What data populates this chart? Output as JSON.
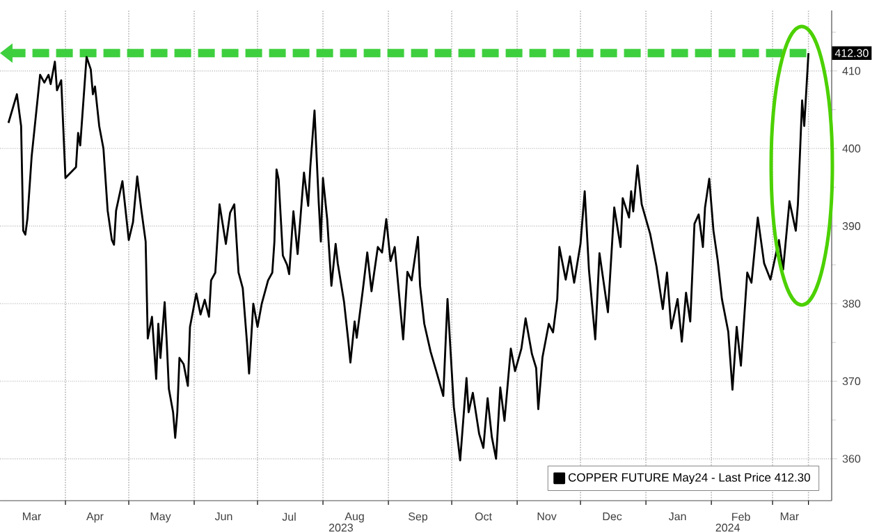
{
  "chart_data": {
    "type": "line",
    "x": [
      "2023-03-05",
      "2023-03-09",
      "2023-03-11",
      "2023-03-12",
      "2023-03-13",
      "2023-03-14",
      "2023-03-16",
      "2023-03-20",
      "2023-03-22",
      "2023-03-24",
      "2023-03-25",
      "2023-03-27",
      "2023-03-28",
      "2023-03-30",
      "2023-04-01",
      "2023-04-06",
      "2023-04-07",
      "2023-04-08",
      "2023-04-11",
      "2023-04-13",
      "2023-04-14",
      "2023-04-15",
      "2023-04-17",
      "2023-04-19",
      "2023-04-21",
      "2023-04-23",
      "2023-04-24",
      "2023-04-25",
      "2023-04-28",
      "2023-05-01",
      "2023-05-03",
      "2023-05-05",
      "2023-05-07",
      "2023-05-09",
      "2023-05-10",
      "2023-05-12",
      "2023-05-14",
      "2023-05-15",
      "2023-05-16",
      "2023-05-18",
      "2023-05-19",
      "2023-05-20",
      "2023-05-22",
      "2023-05-23",
      "2023-05-24",
      "2023-05-25",
      "2023-05-27",
      "2023-05-29",
      "2023-05-30",
      "2023-06-02",
      "2023-06-04",
      "2023-06-06",
      "2023-06-08",
      "2023-06-09",
      "2023-06-11",
      "2023-06-13",
      "2023-06-16",
      "2023-06-18",
      "2023-06-20",
      "2023-06-22",
      "2023-06-24",
      "2023-06-26",
      "2023-06-27",
      "2023-06-29",
      "2023-07-01",
      "2023-07-03",
      "2023-07-06",
      "2023-07-08",
      "2023-07-09",
      "2023-07-10",
      "2023-07-11",
      "2023-07-13",
      "2023-07-15",
      "2023-07-16",
      "2023-07-18",
      "2023-07-20",
      "2023-07-23",
      "2023-07-25",
      "2023-07-26",
      "2023-07-28",
      "2023-07-30",
      "2023-07-31",
      "2023-08-01",
      "2023-08-03",
      "2023-08-05",
      "2023-08-07",
      "2023-08-08",
      "2023-08-11",
      "2023-08-13",
      "2023-08-14",
      "2023-08-16",
      "2023-08-17",
      "2023-08-20",
      "2023-08-22",
      "2023-08-24",
      "2023-08-27",
      "2023-08-29",
      "2023-08-31",
      "2023-09-02",
      "2023-09-04",
      "2023-09-08",
      "2023-09-10",
      "2023-09-12",
      "2023-09-15",
      "2023-09-16",
      "2023-09-18",
      "2023-09-21",
      "2023-09-24",
      "2023-09-27",
      "2023-09-29",
      "2023-10-02",
      "2023-10-05",
      "2023-10-08",
      "2023-10-09",
      "2023-10-11",
      "2023-10-14",
      "2023-10-16",
      "2023-10-18",
      "2023-10-20",
      "2023-10-22",
      "2023-10-24",
      "2023-10-26",
      "2023-10-29",
      "2023-10-31",
      "2023-11-03",
      "2023-11-05",
      "2023-11-08",
      "2023-11-10",
      "2023-11-11",
      "2023-11-13",
      "2023-11-16",
      "2023-11-18",
      "2023-11-20",
      "2023-11-21",
      "2023-11-24",
      "2023-11-26",
      "2023-11-28",
      "2023-12-01",
      "2023-12-03",
      "2023-12-05",
      "2023-12-08",
      "2023-12-10",
      "2023-12-14",
      "2023-12-17",
      "2023-12-20",
      "2023-12-21",
      "2023-12-24",
      "2023-12-25",
      "2023-12-26",
      "2023-12-28",
      "2023-12-30",
      "2024-01-03",
      "2024-01-06",
      "2024-01-09",
      "2024-01-11",
      "2024-01-13",
      "2024-01-16",
      "2024-01-18",
      "2024-01-20",
      "2024-01-22",
      "2024-01-24",
      "2024-01-26",
      "2024-01-28",
      "2024-01-29",
      "2024-01-31",
      "2024-02-02",
      "2024-02-04",
      "2024-02-06",
      "2024-02-09",
      "2024-02-11",
      "2024-02-13",
      "2024-02-15",
      "2024-02-18",
      "2024-02-20",
      "2024-02-23",
      "2024-02-26",
      "2024-02-29",
      "2024-03-04",
      "2024-03-06",
      "2024-03-09",
      "2024-03-12",
      "2024-03-13",
      "2024-03-15",
      "2024-03-16",
      "2024-03-18"
    ],
    "series": [
      {
        "name": "COPPER FUTURE May24 - Last Price 412.30",
        "color": "#000000",
        "values": [
          403.3,
          407.0,
          402.9,
          389.4,
          388.9,
          391,
          399,
          409.5,
          408.5,
          409.5,
          408.3,
          411.2,
          407.5,
          408.8,
          396.2,
          397.6,
          402,
          400.4,
          411.8,
          410.2,
          407,
          408,
          402.9,
          400,
          392,
          388.2,
          387.6,
          392,
          395.8,
          388.2,
          390.5,
          396.4,
          392,
          388,
          375.5,
          378.3,
          370.3,
          377.4,
          373,
          380.2,
          375,
          369,
          366,
          362.7,
          366,
          373,
          372.2,
          369.4,
          377,
          381.3,
          378.6,
          380.5,
          378.3,
          383,
          384,
          392.8,
          387.7,
          391.7,
          392.8,
          384,
          382,
          375,
          371,
          380,
          377,
          380,
          383,
          384,
          388,
          397.3,
          396,
          386.2,
          385,
          383.8,
          391.9,
          386.4,
          396.9,
          392.6,
          397.6,
          404.9,
          393,
          388,
          396.2,
          390.9,
          382.3,
          387.7,
          385.2,
          380.2,
          375.2,
          372.4,
          377.7,
          375.6,
          382,
          386.6,
          381.6,
          387.3,
          386.6,
          390.9,
          385.5,
          387.3,
          375.4,
          384.1,
          383,
          388.6,
          382.3,
          377.4,
          373.8,
          371,
          368.1,
          380.6,
          366.7,
          359.8,
          370.4,
          366,
          368.5,
          363.2,
          361.4,
          367.8,
          362.8,
          360,
          369.2,
          364.9,
          374.2,
          371.3,
          374.2,
          378.1,
          373.5,
          371.7,
          366.4,
          373.1,
          377.4,
          376.3,
          380.6,
          387.3,
          383.1,
          386.1,
          382.7,
          387.7,
          394.5,
          384.4,
          375.4,
          386.5,
          378.9,
          392.4,
          387.3,
          393.6,
          391.1,
          394.5,
          391.9,
          397.8,
          392.8,
          389,
          384.8,
          379.3,
          384,
          376.8,
          380.6,
          375.1,
          381.4,
          377.7,
          390.3,
          391.5,
          387.3,
          392.4,
          396.1,
          389.4,
          385.6,
          380.6,
          376.4,
          368.9,
          377,
          372,
          384,
          382.7,
          391.1,
          385.2,
          383.1,
          388.2,
          384.4,
          393.2,
          389.4,
          392.8,
          406.2,
          402.9,
          412.3
        ]
      }
    ],
    "xlim": [
      "2023-03-01",
      "2024-03-29"
    ],
    "xticks": [
      {
        "value": "2023-03-16",
        "label": "Mar"
      },
      {
        "value": "2023-04-01",
        "label": null
      },
      {
        "value": "2023-04-15",
        "label": "Apr"
      },
      {
        "value": "2023-05-01",
        "label": null
      },
      {
        "value": "2023-05-16",
        "label": "May"
      },
      {
        "value": "2023-06-01",
        "label": null
      },
      {
        "value": "2023-06-15",
        "label": "Jun"
      },
      {
        "value": "2023-07-01",
        "label": null
      },
      {
        "value": "2023-07-16",
        "label": "Jul"
      },
      {
        "value": "2023-08-01",
        "label": null
      },
      {
        "value": "2023-08-16",
        "label": "Aug"
      },
      {
        "value": "2023-09-01",
        "label": null
      },
      {
        "value": "2023-09-15",
        "label": "Sep"
      },
      {
        "value": "2023-10-01",
        "label": null
      },
      {
        "value": "2023-10-16",
        "label": "Oct"
      },
      {
        "value": "2023-11-01",
        "label": null
      },
      {
        "value": "2023-11-15",
        "label": "Nov"
      },
      {
        "value": "2023-12-01",
        "label": null
      },
      {
        "value": "2023-12-16",
        "label": "Dec"
      },
      {
        "value": "2024-01-01",
        "label": null
      },
      {
        "value": "2024-01-16",
        "label": "Jan"
      },
      {
        "value": "2024-02-01",
        "label": null
      },
      {
        "value": "2024-02-15",
        "label": "Feb"
      },
      {
        "value": "2024-03-01",
        "label": null
      },
      {
        "value": "2024-03-09",
        "label": "Mar"
      },
      {
        "value": "2024-03-18",
        "label": null
      }
    ],
    "ylim": [
      354.6,
      417.8
    ],
    "yticks": [
      360,
      370,
      380,
      390,
      400,
      410
    ],
    "ref_lines": [
      {
        "axis": "y",
        "value": 412.3,
        "label": "412.30",
        "color": "#3ecf3e",
        "line_style": "dashed"
      }
    ],
    "annotations": [
      "2023",
      "2024"
    ],
    "grid": true,
    "legend": "bottom right",
    "line_style": "solid",
    "marker": "none"
  }
}
